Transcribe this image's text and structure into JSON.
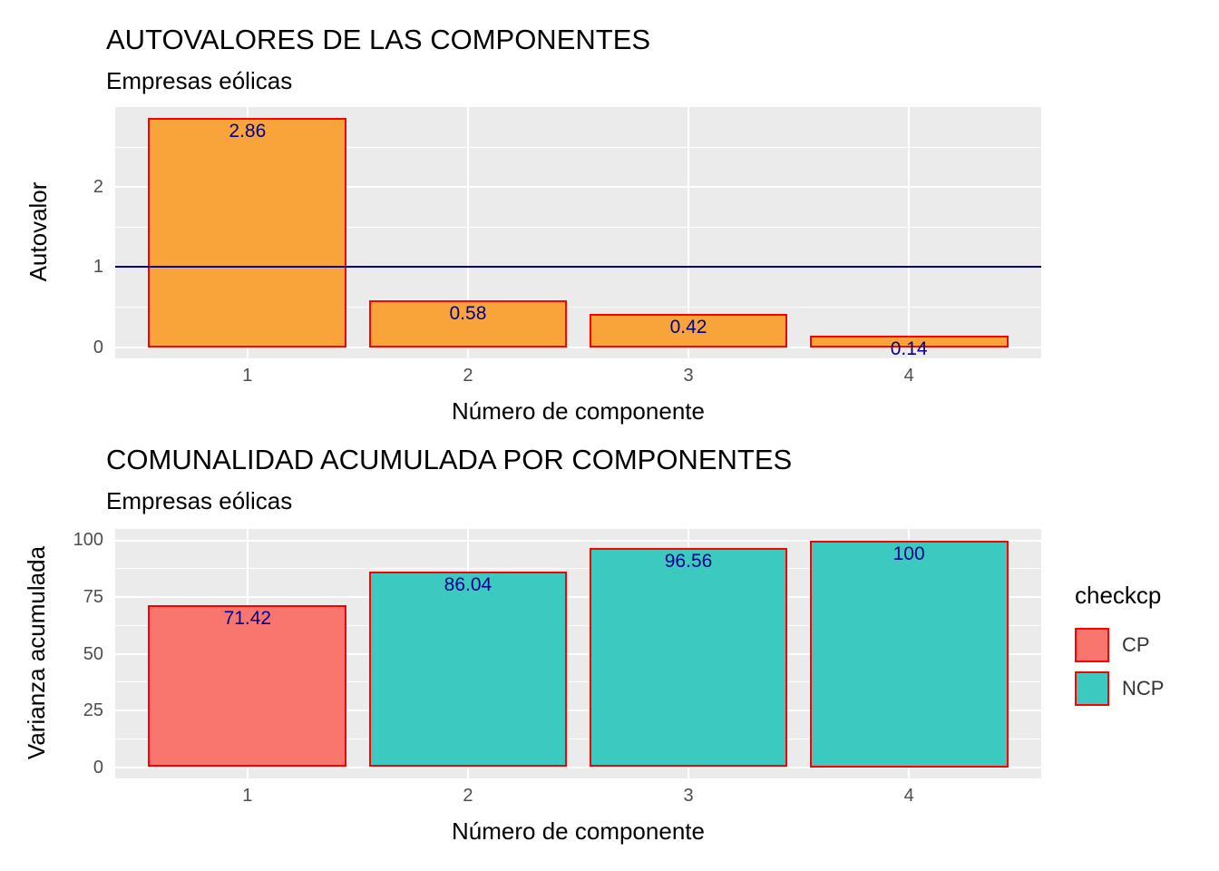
{
  "colors": {
    "page_background": "#FFFFFF",
    "panel_background": "#EBEBEB",
    "gridline": "#FFFFFF",
    "axis_text": "#4D4D4D",
    "title_text": "#000000"
  },
  "chart_data": [
    {
      "type": "bar",
      "title": "AUTOVALORES DE LAS COMPONENTES",
      "subtitle": "Empresas eólicas",
      "xlabel": "Número de componente",
      "ylabel": "Autovalor",
      "categories": [
        "1",
        "2",
        "3",
        "4"
      ],
      "values": [
        2.86,
        0.58,
        0.42,
        0.14
      ],
      "bar_labels": [
        "2.86",
        "0.58",
        "0.42",
        "0.14"
      ],
      "bar_colors": [
        "#F9A43B",
        "#F9A43B",
        "#F9A43B",
        "#F9A43B"
      ],
      "bar_border": "#FF0000",
      "label_color": "#00008B",
      "yticks": [
        0,
        1,
        2
      ],
      "ylim": [
        -0.14,
        3.0
      ],
      "ref_line": 1,
      "ref_line_color": "#00008B",
      "grid": true,
      "legend": null
    },
    {
      "type": "bar",
      "title": "COMUNALIDAD ACUMULADA POR COMPONENTES",
      "subtitle": "Empresas eólicas",
      "xlabel": "Número de componente",
      "ylabel": "Varianza acumulada",
      "categories": [
        "1",
        "2",
        "3",
        "4"
      ],
      "values": [
        71.42,
        86.04,
        96.56,
        100
      ],
      "bar_labels": [
        "71.42",
        "86.04",
        "96.56",
        "100"
      ],
      "groups": [
        "CP",
        "NCP",
        "NCP",
        "NCP"
      ],
      "bar_colors": [
        "#F8766D",
        "#3BC9C0",
        "#3BC9C0",
        "#3BC9C0"
      ],
      "bar_border": "#FF0000",
      "label_color": "#00008B",
      "yticks": [
        0,
        25,
        50,
        75,
        100
      ],
      "ylim": [
        -5,
        105
      ],
      "ref_line": null,
      "ref_line_color": null,
      "grid": true,
      "legend": {
        "title": "checkcp",
        "position": "right",
        "entries": [
          {
            "label": "CP",
            "color": "#F8766D"
          },
          {
            "label": "NCP",
            "color": "#3BC9C0"
          }
        ]
      }
    }
  ]
}
